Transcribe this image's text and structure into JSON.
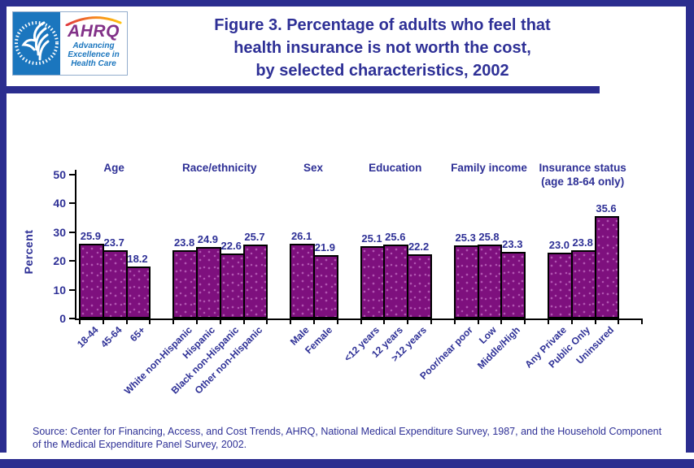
{
  "header": {
    "logo": {
      "acronym": "AHRQ",
      "tagline_line1": "Advancing",
      "tagline_line2": "Excellence in",
      "tagline_line3": "Health Care",
      "hhs_seal": "hhs-eagle-icon"
    },
    "title_line1": "Figure 3. Percentage of adults who feel that",
    "title_line2": "health insurance is not worth the cost,",
    "title_line3": "by selected characteristics, 2002"
  },
  "chart_data": {
    "type": "bar",
    "title": "Figure 3. Percentage of adults who feel that health insurance is not worth the cost, by selected characteristics, 2002",
    "xlabel": "",
    "ylabel": "Percent",
    "ylim": [
      0,
      50
    ],
    "yticks": [
      0,
      10,
      20,
      30,
      40,
      50
    ],
    "grid": false,
    "legend": false,
    "value_labels": true,
    "groups": [
      {
        "label": "Age",
        "label2": "",
        "categories": [
          "18-44",
          "45-64",
          "65+"
        ],
        "values": [
          25.9,
          23.7,
          18.2
        ]
      },
      {
        "label": "Race/ethnicity",
        "label2": "",
        "categories": [
          "White non-Hispanic",
          "Hispanic",
          "Black non-Hispanic",
          "Other non-Hispanic"
        ],
        "values": [
          23.8,
          24.9,
          22.6,
          25.7
        ]
      },
      {
        "label": "Sex",
        "label2": "",
        "categories": [
          "Male",
          "Female"
        ],
        "values": [
          26.1,
          21.9
        ]
      },
      {
        "label": "Education",
        "label2": "",
        "categories": [
          "<12 years",
          "12 years",
          ">12 years"
        ],
        "values": [
          25.1,
          25.6,
          22.2
        ]
      },
      {
        "label": "Family income",
        "label2": "",
        "categories": [
          "Poor/near poor",
          "Low",
          "Middle/High"
        ],
        "values": [
          25.3,
          25.8,
          23.3
        ]
      },
      {
        "label": "Insurance status",
        "label2": "(age 18-64 only)",
        "categories": [
          "Any Private",
          "Public Only",
          "Uninsured"
        ],
        "values": [
          23.0,
          23.8,
          35.6
        ]
      }
    ]
  },
  "footer": {
    "source": "Source: Center for Financing, Access, and Cost Trends, AHRQ, National Medical Expenditure Survey, 1987, and the Household Component of the Medical Expenditure Panel Survey, 2002."
  },
  "colors": {
    "frame_navy": "#2b2d8f",
    "text_navy": "#2e3096",
    "bar_purple": "#7e107e",
    "bar_speckle": "#b155b1",
    "hhs_blue": "#1b76be",
    "ahrq_purple": "#823188"
  }
}
